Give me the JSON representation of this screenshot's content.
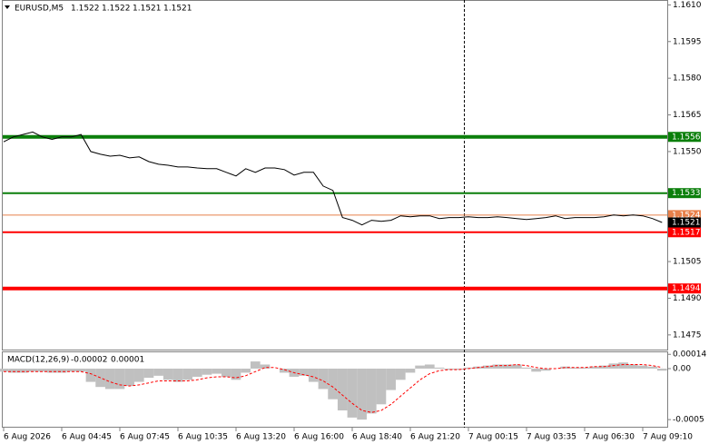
{
  "chart_data": [
    {
      "type": "line",
      "title": "EURUSD,M5",
      "ohlc": [
        1.1522,
        1.1522,
        1.1521,
        1.1521
      ],
      "color": "#000000",
      "categories": [
        "6 Aug 2026",
        null,
        null,
        null,
        null,
        null,
        "6 Aug 04:45",
        null,
        null,
        null,
        null,
        null,
        "6 Aug 07:45",
        null,
        null,
        null,
        null,
        null,
        "6 Aug 10:35",
        null,
        null,
        null,
        null,
        null,
        "6 Aug 13:20",
        null,
        null,
        null,
        null,
        null,
        "6 Aug 16:00",
        null,
        null,
        null,
        null,
        null,
        "6 Aug 18:40",
        null,
        null,
        null,
        null,
        null,
        "6 Aug 21:20",
        null,
        null,
        null,
        null,
        null,
        "7 Aug 00:15",
        null,
        null,
        null,
        null,
        null,
        "7 Aug 03:35",
        null,
        null,
        null,
        null,
        null,
        "7 Aug 06:30",
        null,
        null,
        null,
        null,
        null,
        "7 Aug 09:10",
        null,
        null
      ],
      "values": [
        1.1554,
        1.1556,
        1.1557,
        1.1558,
        1.1556,
        1.1555,
        1.1556,
        1.1556,
        1.1557,
        1.155,
        1.15489,
        1.15481,
        1.15485,
        1.15474,
        1.15478,
        1.15459,
        1.15448,
        1.15444,
        1.15437,
        1.15437,
        1.15433,
        1.1543,
        1.1543,
        1.15415,
        1.154,
        1.1543,
        1.15415,
        1.15433,
        1.15433,
        1.15426,
        1.15404,
        1.15415,
        1.15415,
        1.15359,
        1.15341,
        1.1523,
        1.15219,
        1.152,
        1.15219,
        1.15215,
        1.15219,
        1.15237,
        1.15233,
        1.15237,
        1.15237,
        1.15226,
        1.1523,
        1.1523,
        1.15233,
        1.1523,
        1.1523,
        1.15233,
        1.1523,
        1.15226,
        1.15222,
        1.15226,
        1.1523,
        1.15237,
        1.15226,
        1.1523,
        1.1523,
        1.1523,
        1.15233,
        1.15241,
        1.15237,
        1.15241,
        1.15237,
        1.15226,
        1.1521
      ],
      "ylim": [
        1.1469,
        1.1612
      ],
      "yticks": [
        {
          "value": 1.161,
          "label": "1.1610"
        },
        1.1595,
        {
          "value": 1.158,
          "label": "1.1580"
        },
        1.1565,
        {
          "value": 1.155,
          "label": "1.1550"
        },
        1.1505,
        {
          "value": 1.149,
          "label": "1.1490"
        },
        1.1475
      ],
      "levels": [
        {
          "value": 1.1556,
          "color": "#0b7f0b"
        },
        {
          "value": 1.1533,
          "color": "#0b7f0b"
        },
        {
          "value": 1.1524,
          "color": "#e8804a"
        },
        {
          "value": 1.1517,
          "color": "#ff0000"
        },
        {
          "value": 1.1494,
          "color": "#ff0000"
        }
      ],
      "current_price": 1.1521
    },
    {
      "type": "bar",
      "title": "MACD(12,26,9)",
      "current": [
        -2e-05,
        1e-05
      ],
      "color": "#c0c0c0",
      "values": [
        -3e-05,
        -4e-05,
        -4e-05,
        -3e-05,
        -3e-05,
        -4e-05,
        -4e-05,
        -3e-05,
        -3e-05,
        -0.00013,
        -0.00018,
        -0.0002,
        -0.0002,
        -0.00017,
        -0.00013,
        -9e-05,
        -7e-05,
        -0.00011,
        -0.00013,
        -0.00011,
        -8e-05,
        -6e-05,
        -5e-05,
        -8e-05,
        -0.00011,
        -4e-05,
        7e-05,
        4e-05,
        0,
        -4e-05,
        -8e-05,
        -7e-05,
        -0.00013,
        -0.0002,
        -0.0003,
        -0.00041,
        -0.00048,
        -0.0005,
        -0.00044,
        -0.00035,
        -0.00021,
        -0.00011,
        -4e-05,
        3e-05,
        4e-05,
        1e-05,
        -1e-05,
        -1e-05,
        1e-05,
        2e-05,
        3e-05,
        4e-05,
        4e-05,
        4e-05,
        1e-05,
        -3e-05,
        -2e-05,
        0,
        2e-05,
        1e-05,
        1e-05,
        2e-05,
        3e-05,
        5e-05,
        6e-05,
        4e-05,
        3e-05,
        2e-05,
        -2e-05
      ],
      "signal": {
        "color": "#ff0000",
        "values": [
          -3e-05,
          -3e-05,
          -3e-05,
          -3e-05,
          -3e-05,
          -3e-05,
          -3e-05,
          -3e-05,
          -3e-05,
          -5e-05,
          -9e-05,
          -0.00013,
          -0.00016,
          -0.00017,
          -0.00016,
          -0.00014,
          -0.00012,
          -0.00012,
          -0.00012,
          -0.00012,
          -0.00011,
          -9e-05,
          -8e-05,
          -8e-05,
          -9e-05,
          -7e-05,
          -3e-05,
          1e-05,
          1e-05,
          -1e-05,
          -4e-05,
          -6e-05,
          -8e-05,
          -0.00012,
          -0.00018,
          -0.00026,
          -0.00034,
          -0.00041,
          -0.00043,
          -0.00041,
          -0.00035,
          -0.00027,
          -0.00019,
          -0.00011,
          -5e-05,
          -2e-05,
          -1e-05,
          -1e-05,
          0,
          1e-05,
          2e-05,
          3e-05,
          3e-05,
          4e-05,
          3e-05,
          1e-05,
          0,
          0,
          1e-05,
          1e-05,
          1e-05,
          2e-05,
          2e-05,
          3e-05,
          4e-05,
          4e-05,
          4e-05,
          3e-05,
          1e-05
        ]
      },
      "ylim": [
        -0.00057,
        0.00016
      ],
      "yticks": [
        0.00014,
        {
          "value": 0,
          "label": "0.00"
        },
        -0.0005
      ]
    }
  ]
}
